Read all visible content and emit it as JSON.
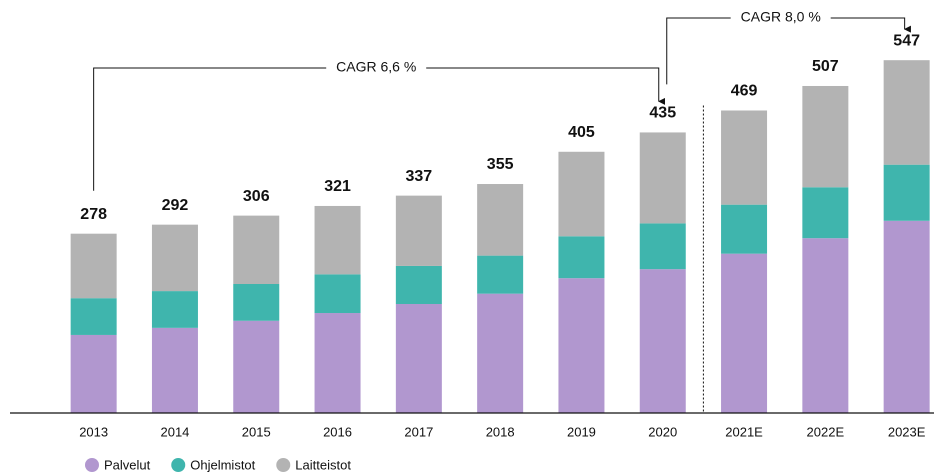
{
  "chart_data": {
    "type": "stacked_bar",
    "categories": [
      "2013",
      "2014",
      "2015",
      "2016",
      "2017",
      "2018",
      "2019",
      "2020",
      "2021E",
      "2022E",
      "2023E"
    ],
    "series": [
      {
        "name": "Palvelut",
        "color": "#b197cf",
        "values": [
          121,
          132,
          143,
          155,
          169,
          185,
          209,
          223,
          247,
          271,
          298
        ]
      },
      {
        "name": "Ohjelmistot",
        "color": "#3fb5ad",
        "values": [
          57,
          57,
          57,
          60,
          59,
          59,
          65,
          71,
          76,
          79,
          87
        ]
      },
      {
        "name": "Laitteistot",
        "color": "#b3b3b3",
        "values": [
          100,
          103,
          106,
          106,
          109,
          111,
          131,
          141,
          146,
          157,
          162
        ]
      }
    ],
    "totals": [
      278,
      292,
      306,
      321,
      337,
      355,
      405,
      435,
      469,
      507,
      547
    ],
    "forecast_start": "2021E",
    "annotations": [
      {
        "text": "CAGR 6,6 %",
        "from": "2013",
        "to": "2020"
      },
      {
        "text": "CAGR 8,0 %",
        "from": "2020",
        "to": "2023E"
      }
    ],
    "legend": "bottom-left"
  }
}
